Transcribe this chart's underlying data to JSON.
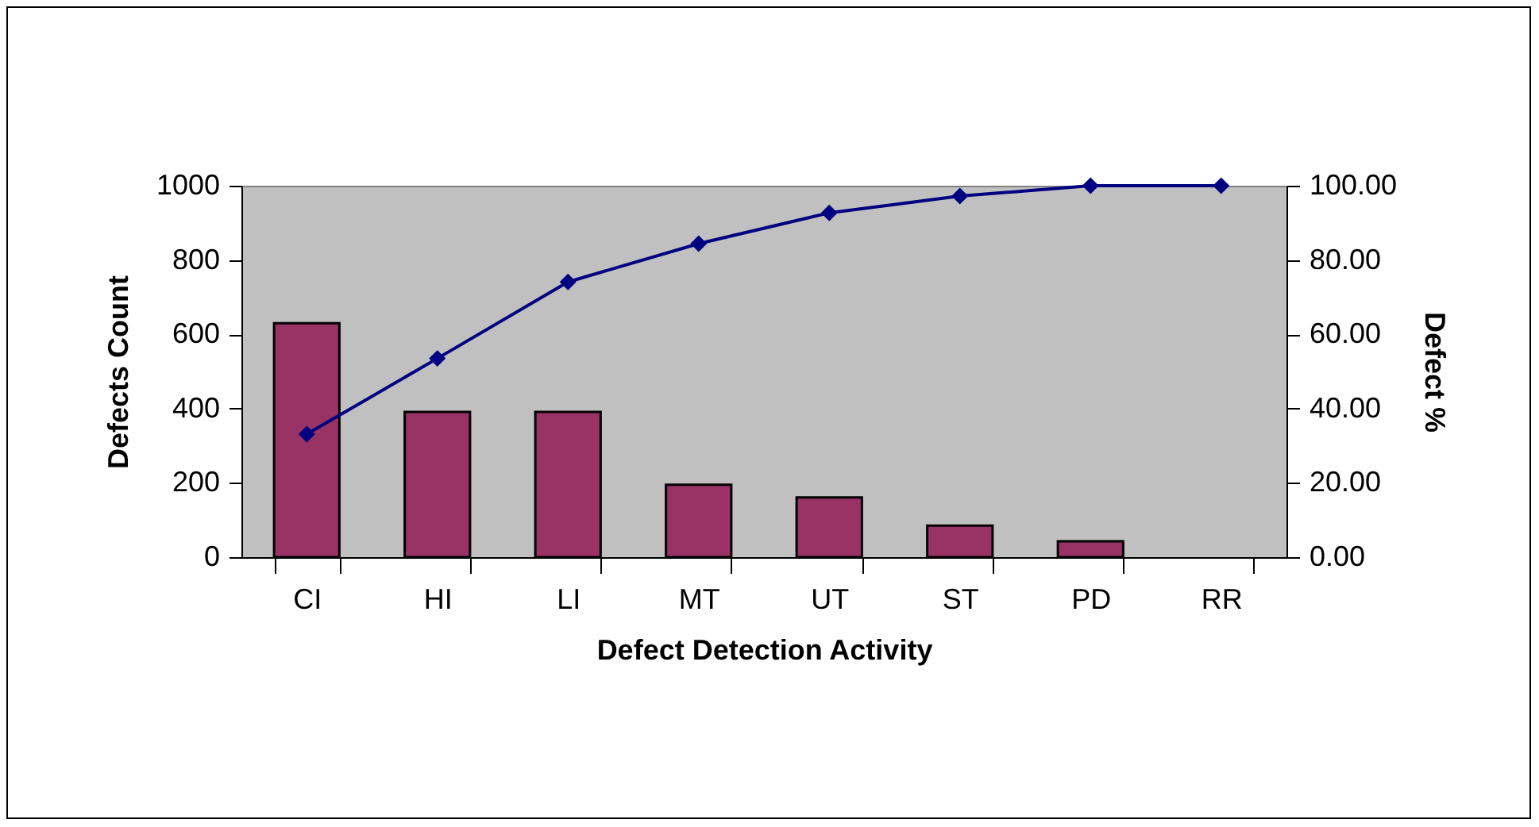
{
  "chart_data": {
    "type": "bar",
    "xlabel": "Defect Detection Activity",
    "ylabel": "Defects Count",
    "y2label": "Defect %",
    "categories": [
      "CI",
      "HI",
      "LI",
      "MT",
      "UT",
      "ST",
      "PD",
      "RR"
    ],
    "series": [
      {
        "color": "#993366",
        "values": [
          630,
          391,
          391,
          195,
          161,
          85,
          43,
          0
        ]
      },
      {
        "type": "line",
        "axis": "y2",
        "color": "#000080",
        "marker": "diamond",
        "values": [
          33.1,
          53.5,
          74.1,
          84.4,
          92.7,
          97.2,
          100,
          100
        ]
      }
    ],
    "ylim": [
      0,
      1000
    ],
    "yticks": [
      0,
      200,
      400,
      600,
      800,
      1000
    ],
    "y2lim": [
      0,
      100
    ],
    "y2ticks": [
      {
        "value": 0,
        "label": "0.00"
      },
      {
        "value": 20,
        "label": "20.00"
      },
      {
        "value": 40,
        "label": "40.00"
      },
      {
        "value": 60,
        "label": "60.00"
      },
      {
        "value": 80,
        "label": "80.00"
      },
      {
        "value": 100,
        "label": "100.00"
      }
    ],
    "grid": false
  }
}
